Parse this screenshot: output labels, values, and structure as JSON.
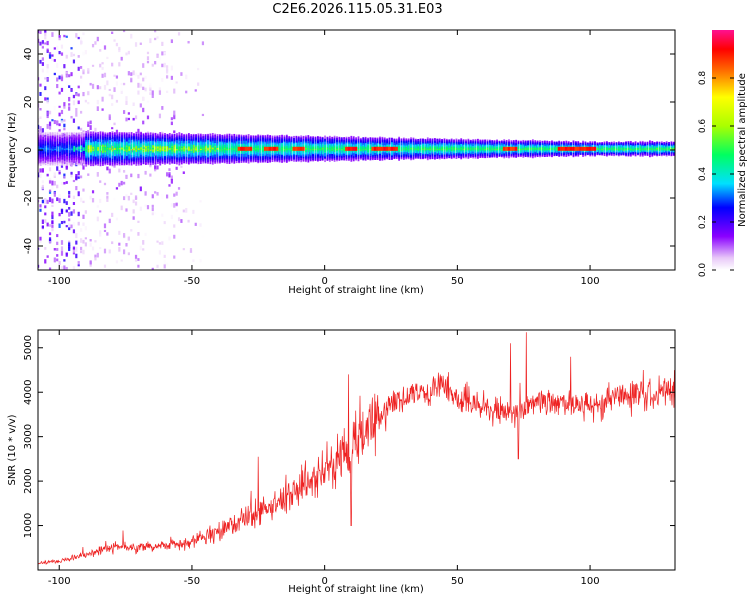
{
  "title": "C2E6.2026.115.05.31.E03",
  "colors": {
    "snr_line": "#ee2222",
    "frame": "#000000",
    "background": "#ffffff"
  },
  "chart_data": [
    {
      "type": "heatmap",
      "title": "C2E6.2026.115.05.31.E03",
      "xlabel": "Height of straight line (km)",
      "ylabel": "Frequency (Hz)",
      "xlim": [
        -108,
        132
      ],
      "ylim": [
        -50,
        50
      ],
      "x_ticks": [
        -100,
        -50,
        0,
        50,
        100
      ],
      "y_ticks": [
        -40,
        -20,
        0,
        20,
        40
      ],
      "grid": false,
      "colormap": "rainbow (white-violet-blue-cyan-green-yellow-red-magenta)",
      "colorbar": {
        "label": "Normalized spectral amplitude",
        "range": [
          0,
          1
        ],
        "ticks": [
          0.0,
          0.2,
          0.4,
          0.6,
          0.8
        ]
      },
      "features": {
        "central_band_frequency_hz": 0.5,
        "central_band_halfwidth_hz_at_-80km": 7,
        "central_band_halfwidth_hz_at_+100km": 3,
        "broadband_noise_x_range_km": [
          -108,
          -55
        ],
        "strong_peaks_km": [
          -30,
          -20,
          -10,
          10,
          20,
          25,
          70,
          90,
          95,
          100
        ]
      }
    },
    {
      "type": "line",
      "xlabel": "Height of straight line (km)",
      "ylabel": "SNR (10 * v/v)",
      "xlim": [
        -108,
        132
      ],
      "ylim": [
        0,
        5400
      ],
      "x_ticks": [
        -100,
        -50,
        0,
        50,
        100
      ],
      "y_ticks": [
        1000,
        2000,
        3000,
        4000,
        5000
      ],
      "grid": false,
      "series": [
        {
          "x": [
            -108,
            -100,
            -90,
            -80,
            -70,
            -60,
            -50,
            -40,
            -30,
            -20,
            -10,
            0,
            10,
            20,
            25,
            30,
            40,
            45,
            50,
            60,
            65,
            70,
            75,
            80,
            90,
            100,
            110,
            120,
            132
          ],
          "values": [
            150,
            200,
            350,
            500,
            520,
            560,
            620,
            900,
            1150,
            1400,
            1800,
            2250,
            2700,
            3400,
            3800,
            3850,
            4000,
            4200,
            3850,
            3700,
            3550,
            3500,
            3600,
            3800,
            3750,
            3650,
            3900,
            3950,
            4050
          ],
          "spikes": [
            {
              "x": 9,
              "value": 4400
            },
            {
              "x": 10,
              "value": 1000
            },
            {
              "x": 70,
              "value": 5100
            },
            {
              "x": 76,
              "value": 5350
            },
            {
              "x": 73,
              "value": 2500
            },
            {
              "x": -25,
              "value": 2550
            },
            {
              "x": 120,
              "value": 4500
            }
          ]
        }
      ]
    }
  ]
}
